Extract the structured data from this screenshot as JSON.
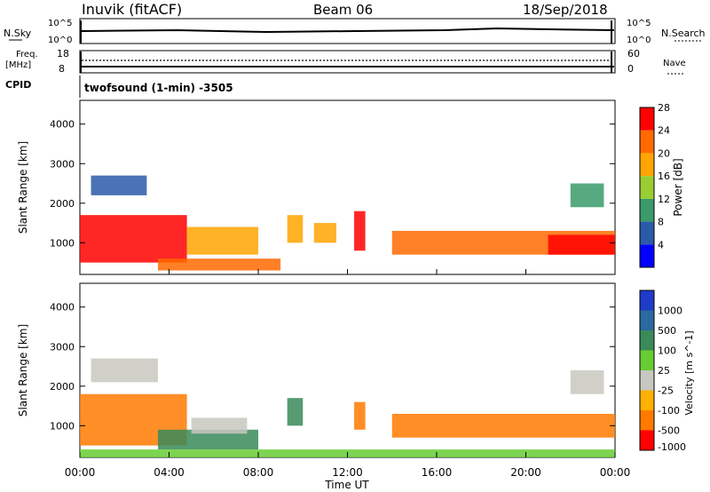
{
  "header": {
    "station": "Inuvik (fitACF)",
    "beam": "Beam 06",
    "date": "18/Sep/2018"
  },
  "top_panels": {
    "nsky_label": "N.Sky",
    "nsky_top": "10^5",
    "nsky_bottom": "10^0",
    "nsearch_label": "N.Search",
    "nsearch_top": "10^5",
    "nsearch_bottom": "10^0",
    "freq_label": "Freq.",
    "freq_unit": "[MHz]",
    "freq_top": "18",
    "freq_bottom": "8",
    "nave_top": "60",
    "nave_bottom": "0",
    "nave_label": "Nave",
    "cpid_label": "CPID",
    "cpid_text": "twofsound (1-min) -3505"
  },
  "chart_data": [
    {
      "type": "heatmap",
      "title": "Power",
      "ylabel": "Slant Range [km]",
      "xlabel": "",
      "ylim": [
        200,
        4600
      ],
      "xlim": [
        0,
        24
      ],
      "yticks": [
        "1000",
        "2000",
        "3000",
        "4000"
      ],
      "colorbar_label": "Power [dB]",
      "colorbar_ticks": [
        "4",
        "8",
        "12",
        "16",
        "20",
        "24",
        "28"
      ],
      "colorbar_colors": [
        "#0000ff",
        "#2a5aa8",
        "#3a9a6a",
        "#9acd32",
        "#ffa500",
        "#ff6a00",
        "#ff0000"
      ],
      "features": [
        {
          "t0": 0.0,
          "t1": 4.8,
          "r0": 500,
          "r1": 1700,
          "level": 6
        },
        {
          "t0": 4.8,
          "t1": 8.0,
          "r0": 700,
          "r1": 1400,
          "level": 4
        },
        {
          "t0": 3.5,
          "t1": 9.0,
          "r0": 300,
          "r1": 600,
          "level": 5
        },
        {
          "t0": 9.3,
          "t1": 10.0,
          "r0": 1000,
          "r1": 1700,
          "level": 4
        },
        {
          "t0": 10.5,
          "t1": 11.5,
          "r0": 1000,
          "r1": 1500,
          "level": 4
        },
        {
          "t0": 12.3,
          "t1": 12.8,
          "r0": 800,
          "r1": 1800,
          "level": 6
        },
        {
          "t0": 14.0,
          "t1": 24.0,
          "r0": 700,
          "r1": 1300,
          "level": 5
        },
        {
          "t0": 21.0,
          "t1": 24.0,
          "r0": 700,
          "r1": 1200,
          "level": 6
        },
        {
          "t0": 0.5,
          "t1": 3.0,
          "r0": 2200,
          "r1": 2700,
          "level": 1
        },
        {
          "t0": 22.0,
          "t1": 23.5,
          "r0": 1900,
          "r1": 2500,
          "level": 2
        }
      ]
    },
    {
      "type": "heatmap",
      "title": "Velocity",
      "ylabel": "Slant Range [km]",
      "xlabel": "Time UT",
      "ylim": [
        200,
        4600
      ],
      "xlim": [
        0,
        24
      ],
      "yticks": [
        "1000",
        "2000",
        "3000",
        "4000"
      ],
      "xticks": [
        "00:00",
        "04:00",
        "08:00",
        "12:00",
        "16:00",
        "20:00",
        "00:00"
      ],
      "colorbar_label": "Velocity [m s^-1]",
      "colorbar_ticks": [
        "1000",
        "500",
        "100",
        "25",
        "-25",
        "-100",
        "-500",
        "-1000"
      ],
      "colorbar_colors": [
        "#1e3cc8",
        "#2a6aa0",
        "#3a8a5a",
        "#66cc33",
        "#c8c8c0",
        "#ffb000",
        "#ff7a00",
        "#ff0000"
      ],
      "features": [
        {
          "t0": 0.0,
          "t1": 4.8,
          "r0": 500,
          "r1": 1800,
          "level": 6
        },
        {
          "t0": 3.5,
          "t1": 8.0,
          "r0": 400,
          "r1": 900,
          "level": 2
        },
        {
          "t0": 5.0,
          "t1": 7.5,
          "r0": 800,
          "r1": 1200,
          "level": 4
        },
        {
          "t0": 9.3,
          "t1": 10.0,
          "r0": 1000,
          "r1": 1700,
          "level": 2
        },
        {
          "t0": 12.3,
          "t1": 12.8,
          "r0": 900,
          "r1": 1600,
          "level": 6
        },
        {
          "t0": 14.0,
          "t1": 24.0,
          "r0": 700,
          "r1": 1300,
          "level": 6
        },
        {
          "t0": 0.0,
          "t1": 24.0,
          "r0": 200,
          "r1": 400,
          "level": 3
        },
        {
          "t0": 0.5,
          "t1": 3.5,
          "r0": 2100,
          "r1": 2700,
          "level": 4
        },
        {
          "t0": 22.0,
          "t1": 23.5,
          "r0": 1800,
          "r1": 2400,
          "level": 4
        }
      ]
    }
  ]
}
